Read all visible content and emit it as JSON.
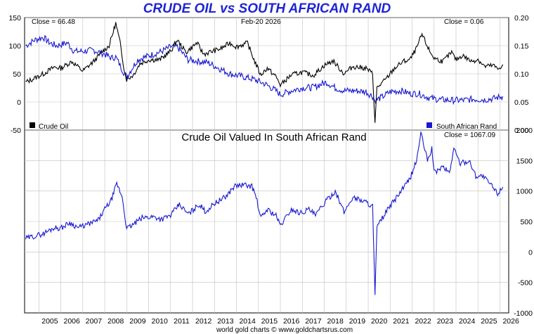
{
  "title": "CRUDE OIL vs SOUTH AFRICAN RAND",
  "footer": "world gold charts © www.goldchartsrus.com",
  "colors": {
    "oil": "#000000",
    "rand": "#1818d0",
    "title": "#1f24d6",
    "grid": "#bfbfbf"
  },
  "chart_data": [
    {
      "type": "line",
      "panel": "top",
      "date_label": "Feb-20  2026",
      "left_close_label": "Close = 66.48",
      "right_close_label": "Close = 0.06",
      "y_left_ticks": [
        "150",
        "100",
        "50",
        "0",
        "-50"
      ],
      "y_right_ticks": [
        "0.20",
        "0.15",
        "0.10",
        "0.05",
        "0.00"
      ],
      "ylim_left": [
        -50,
        150
      ],
      "ylim_right": [
        0,
        0.2
      ],
      "grid": true,
      "legend": "bottom",
      "series": [
        {
          "name": "Crude Oil",
          "axis": "left",
          "points": [
            [
              2004.4,
              35
            ],
            [
              2004.8,
              42
            ],
            [
              2005.2,
              50
            ],
            [
              2005.7,
              62
            ],
            [
              2006.0,
              60
            ],
            [
              2006.5,
              72
            ],
            [
              2007.0,
              55
            ],
            [
              2007.5,
              72
            ],
            [
              2007.9,
              90
            ],
            [
              2008.2,
              100
            ],
            [
              2008.5,
              140
            ],
            [
              2008.7,
              105
            ],
            [
              2008.9,
              55
            ],
            [
              2009.0,
              40
            ],
            [
              2009.3,
              48
            ],
            [
              2009.6,
              68
            ],
            [
              2010.0,
              75
            ],
            [
              2010.5,
              75
            ],
            [
              2011.0,
              90
            ],
            [
              2011.3,
              110
            ],
            [
              2011.7,
              88
            ],
            [
              2012.2,
              105
            ],
            [
              2012.5,
              85
            ],
            [
              2012.9,
              90
            ],
            [
              2013.3,
              95
            ],
            [
              2013.7,
              105
            ],
            [
              2014.0,
              98
            ],
            [
              2014.5,
              105
            ],
            [
              2014.8,
              75
            ],
            [
              2015.1,
              48
            ],
            [
              2015.4,
              60
            ],
            [
              2015.8,
              45
            ],
            [
              2016.0,
              30
            ],
            [
              2016.5,
              48
            ],
            [
              2017.0,
              53
            ],
            [
              2017.5,
              47
            ],
            [
              2018.0,
              65
            ],
            [
              2018.4,
              73
            ],
            [
              2018.9,
              50
            ],
            [
              2019.3,
              63
            ],
            [
              2019.9,
              60
            ],
            [
              2020.2,
              50
            ],
            [
              2020.31,
              -37
            ],
            [
              2020.4,
              25
            ],
            [
              2020.8,
              40
            ],
            [
              2021.2,
              60
            ],
            [
              2021.6,
              72
            ],
            [
              2021.9,
              75
            ],
            [
              2022.2,
              95
            ],
            [
              2022.45,
              120
            ],
            [
              2022.8,
              90
            ],
            [
              2023.0,
              78
            ],
            [
              2023.4,
              72
            ],
            [
              2023.8,
              88
            ],
            [
              2024.0,
              75
            ],
            [
              2024.3,
              83
            ],
            [
              2024.7,
              72
            ],
            [
              2025.0,
              76
            ],
            [
              2025.3,
              63
            ],
            [
              2025.7,
              65
            ],
            [
              2025.9,
              58
            ],
            [
              2026.13,
              66.48
            ]
          ]
        },
        {
          "name": "South African Rand",
          "axis": "right",
          "points": [
            [
              2004.4,
              0.15
            ],
            [
              2004.8,
              0.16
            ],
            [
              2005.2,
              0.165
            ],
            [
              2005.5,
              0.155
            ],
            [
              2005.8,
              0.15
            ],
            [
              2006.3,
              0.155
            ],
            [
              2006.6,
              0.14
            ],
            [
              2007.0,
              0.14
            ],
            [
              2007.5,
              0.142
            ],
            [
              2008.0,
              0.135
            ],
            [
              2008.3,
              0.128
            ],
            [
              2008.5,
              0.13
            ],
            [
              2008.9,
              0.1
            ],
            [
              2009.0,
              0.095
            ],
            [
              2009.5,
              0.125
            ],
            [
              2010.0,
              0.132
            ],
            [
              2010.6,
              0.14
            ],
            [
              2011.0,
              0.148
            ],
            [
              2011.3,
              0.148
            ],
            [
              2011.8,
              0.125
            ],
            [
              2012.3,
              0.122
            ],
            [
              2012.7,
              0.12
            ],
            [
              2013.2,
              0.11
            ],
            [
              2013.7,
              0.1
            ],
            [
              2014.3,
              0.095
            ],
            [
              2014.8,
              0.09
            ],
            [
              2015.3,
              0.082
            ],
            [
              2015.8,
              0.07
            ],
            [
              2016.0,
              0.063
            ],
            [
              2016.5,
              0.07
            ],
            [
              2017.0,
              0.075
            ],
            [
              2017.5,
              0.076
            ],
            [
              2018.1,
              0.085
            ],
            [
              2018.5,
              0.075
            ],
            [
              2018.9,
              0.07
            ],
            [
              2019.4,
              0.07
            ],
            [
              2019.9,
              0.068
            ],
            [
              2020.2,
              0.06
            ],
            [
              2020.3,
              0.052
            ],
            [
              2020.6,
              0.058
            ],
            [
              2021.0,
              0.068
            ],
            [
              2021.5,
              0.07
            ],
            [
              2021.9,
              0.065
            ],
            [
              2022.3,
              0.065
            ],
            [
              2022.8,
              0.057
            ],
            [
              2023.3,
              0.054
            ],
            [
              2023.8,
              0.053
            ],
            [
              2024.3,
              0.053
            ],
            [
              2024.8,
              0.055
            ],
            [
              2025.3,
              0.054
            ],
            [
              2025.7,
              0.056
            ],
            [
              2026.13,
              0.06
            ]
          ]
        }
      ]
    },
    {
      "type": "line",
      "panel": "bottom",
      "title": "Crude Oil Valued In South African Rand",
      "close_label": "Close = 1067.09",
      "y_ticks": [
        "2000",
        "1500",
        "1000",
        "500",
        "0",
        "-500",
        "-1000"
      ],
      "ylim": [
        -1000,
        2000
      ],
      "x_ticks": [
        "2005",
        "2006",
        "2007",
        "2008",
        "2009",
        "2010",
        "2011",
        "2012",
        "2013",
        "2014",
        "2015",
        "2016",
        "2017",
        "2018",
        "2019",
        "2020",
        "2021",
        "2022",
        "2023",
        "2024",
        "2025",
        "2026"
      ],
      "grid": true,
      "series": [
        {
          "name": "",
          "points": [
            [
              2004.4,
              220
            ],
            [
              2004.8,
              260
            ],
            [
              2005.2,
              300
            ],
            [
              2005.7,
              400
            ],
            [
              2006.0,
              390
            ],
            [
              2006.4,
              480
            ],
            [
              2006.8,
              400
            ],
            [
              2007.2,
              450
            ],
            [
              2007.7,
              520
            ],
            [
              2008.0,
              700
            ],
            [
              2008.3,
              850
            ],
            [
              2008.55,
              1120
            ],
            [
              2008.8,
              900
            ],
            [
              2009.0,
              380
            ],
            [
              2009.3,
              450
            ],
            [
              2009.7,
              560
            ],
            [
              2010.2,
              580
            ],
            [
              2010.6,
              540
            ],
            [
              2011.0,
              600
            ],
            [
              2011.4,
              780
            ],
            [
              2011.8,
              620
            ],
            [
              2012.3,
              780
            ],
            [
              2012.6,
              660
            ],
            [
              2013.0,
              800
            ],
            [
              2013.5,
              900
            ],
            [
              2013.9,
              1080
            ],
            [
              2014.3,
              1100
            ],
            [
              2014.7,
              1080
            ],
            [
              2014.9,
              900
            ],
            [
              2015.1,
              550
            ],
            [
              2015.4,
              700
            ],
            [
              2015.8,
              600
            ],
            [
              2016.0,
              430
            ],
            [
              2016.5,
              700
            ],
            [
              2016.9,
              640
            ],
            [
              2017.3,
              700
            ],
            [
              2017.6,
              600
            ],
            [
              2018.0,
              800
            ],
            [
              2018.5,
              1000
            ],
            [
              2018.9,
              650
            ],
            [
              2019.3,
              900
            ],
            [
              2019.9,
              820
            ],
            [
              2020.2,
              750
            ],
            [
              2020.31,
              -720
            ],
            [
              2020.4,
              400
            ],
            [
              2020.8,
              650
            ],
            [
              2021.2,
              850
            ],
            [
              2021.6,
              1050
            ],
            [
              2021.9,
              1200
            ],
            [
              2022.2,
              1500
            ],
            [
              2022.4,
              1950
            ],
            [
              2022.7,
              1500
            ],
            [
              2022.9,
              1700
            ],
            [
              2023.0,
              1300
            ],
            [
              2023.4,
              1400
            ],
            [
              2023.7,
              1300
            ],
            [
              2023.9,
              1700
            ],
            [
              2024.2,
              1450
            ],
            [
              2024.6,
              1500
            ],
            [
              2024.9,
              1250
            ],
            [
              2025.2,
              1250
            ],
            [
              2025.6,
              1100
            ],
            [
              2025.9,
              960
            ],
            [
              2026.13,
              1067.09
            ]
          ]
        }
      ]
    }
  ]
}
